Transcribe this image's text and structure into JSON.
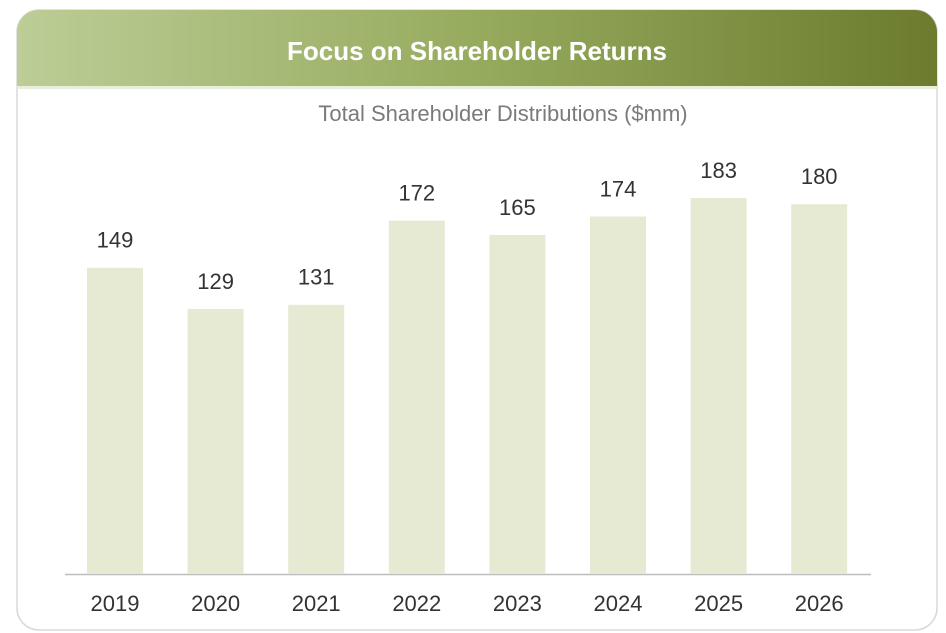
{
  "chart_data": {
    "type": "bar",
    "title": "Focus on Shareholder Returns",
    "subtitle": "Total Shareholder Distributions ($mm)",
    "categories": [
      "2019",
      "2020",
      "2021",
      "2022",
      "2023",
      "2024",
      "2025",
      "2026"
    ],
    "values": [
      149,
      129,
      131,
      172,
      165,
      174,
      183,
      180
    ],
    "color": "#e6ead3"
  }
}
